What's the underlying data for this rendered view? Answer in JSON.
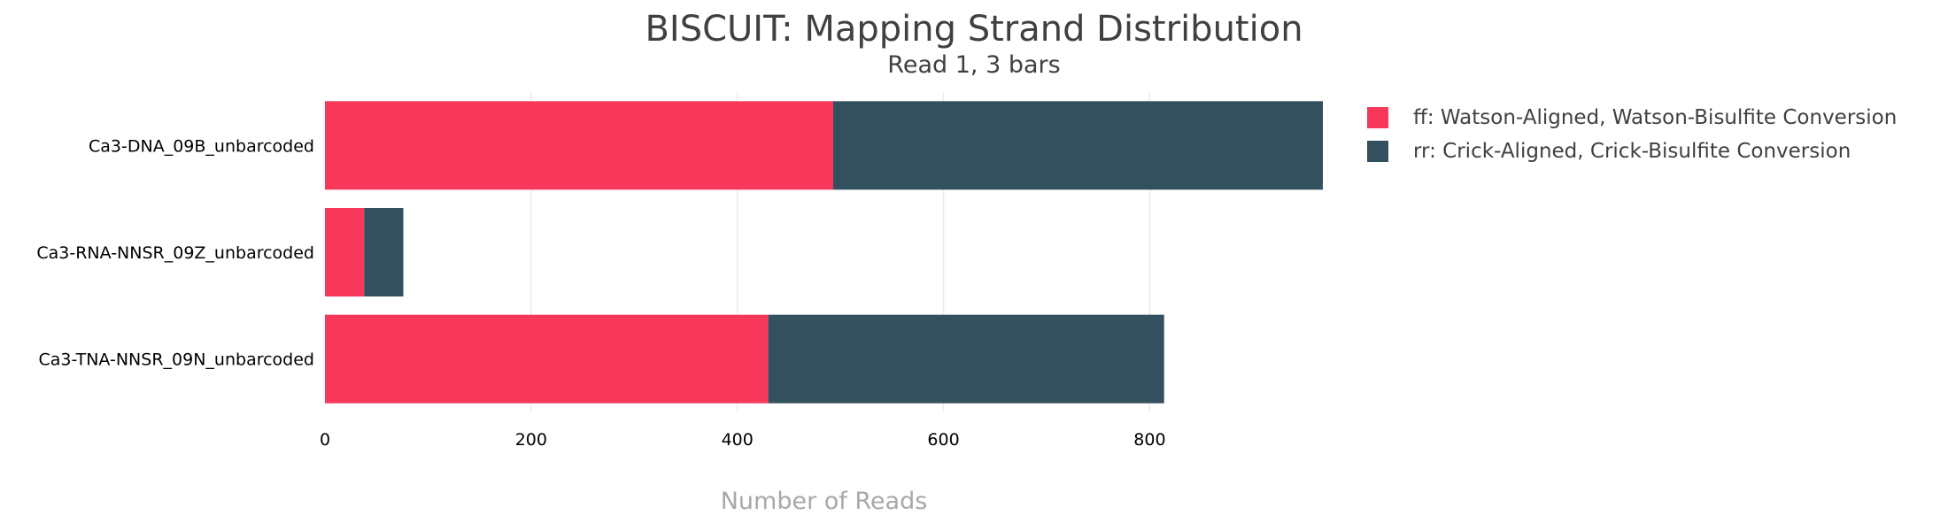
{
  "title": "BISCUIT: Mapping Strand Distribution",
  "subtitle": "Read 1, 3 bars",
  "chart_data": {
    "type": "bar",
    "orientation": "horizontal",
    "stacked": true,
    "categories": [
      "Ca3-DNA_09B_unbarcoded",
      "Ca3-RNA-NNSR_09Z_unbarcoded",
      "Ca3-TNA-NNSR_09N_unbarcoded"
    ],
    "series": [
      {
        "name": "ff: Watson-Aligned, Watson-Bisulfite Conversion",
        "color": "#f7385a",
        "values": [
          493,
          38,
          430
        ]
      },
      {
        "name": "rr: Crick-Aligned, Crick-Bisulfite Conversion",
        "color": "#33505f",
        "values": [
          475,
          38,
          384
        ]
      }
    ],
    "xlabel": "Number of Reads",
    "xlim": [
      0,
      968
    ],
    "xticks": [
      0,
      200,
      400,
      600,
      800
    ],
    "grid": true,
    "legend_position": "right"
  }
}
